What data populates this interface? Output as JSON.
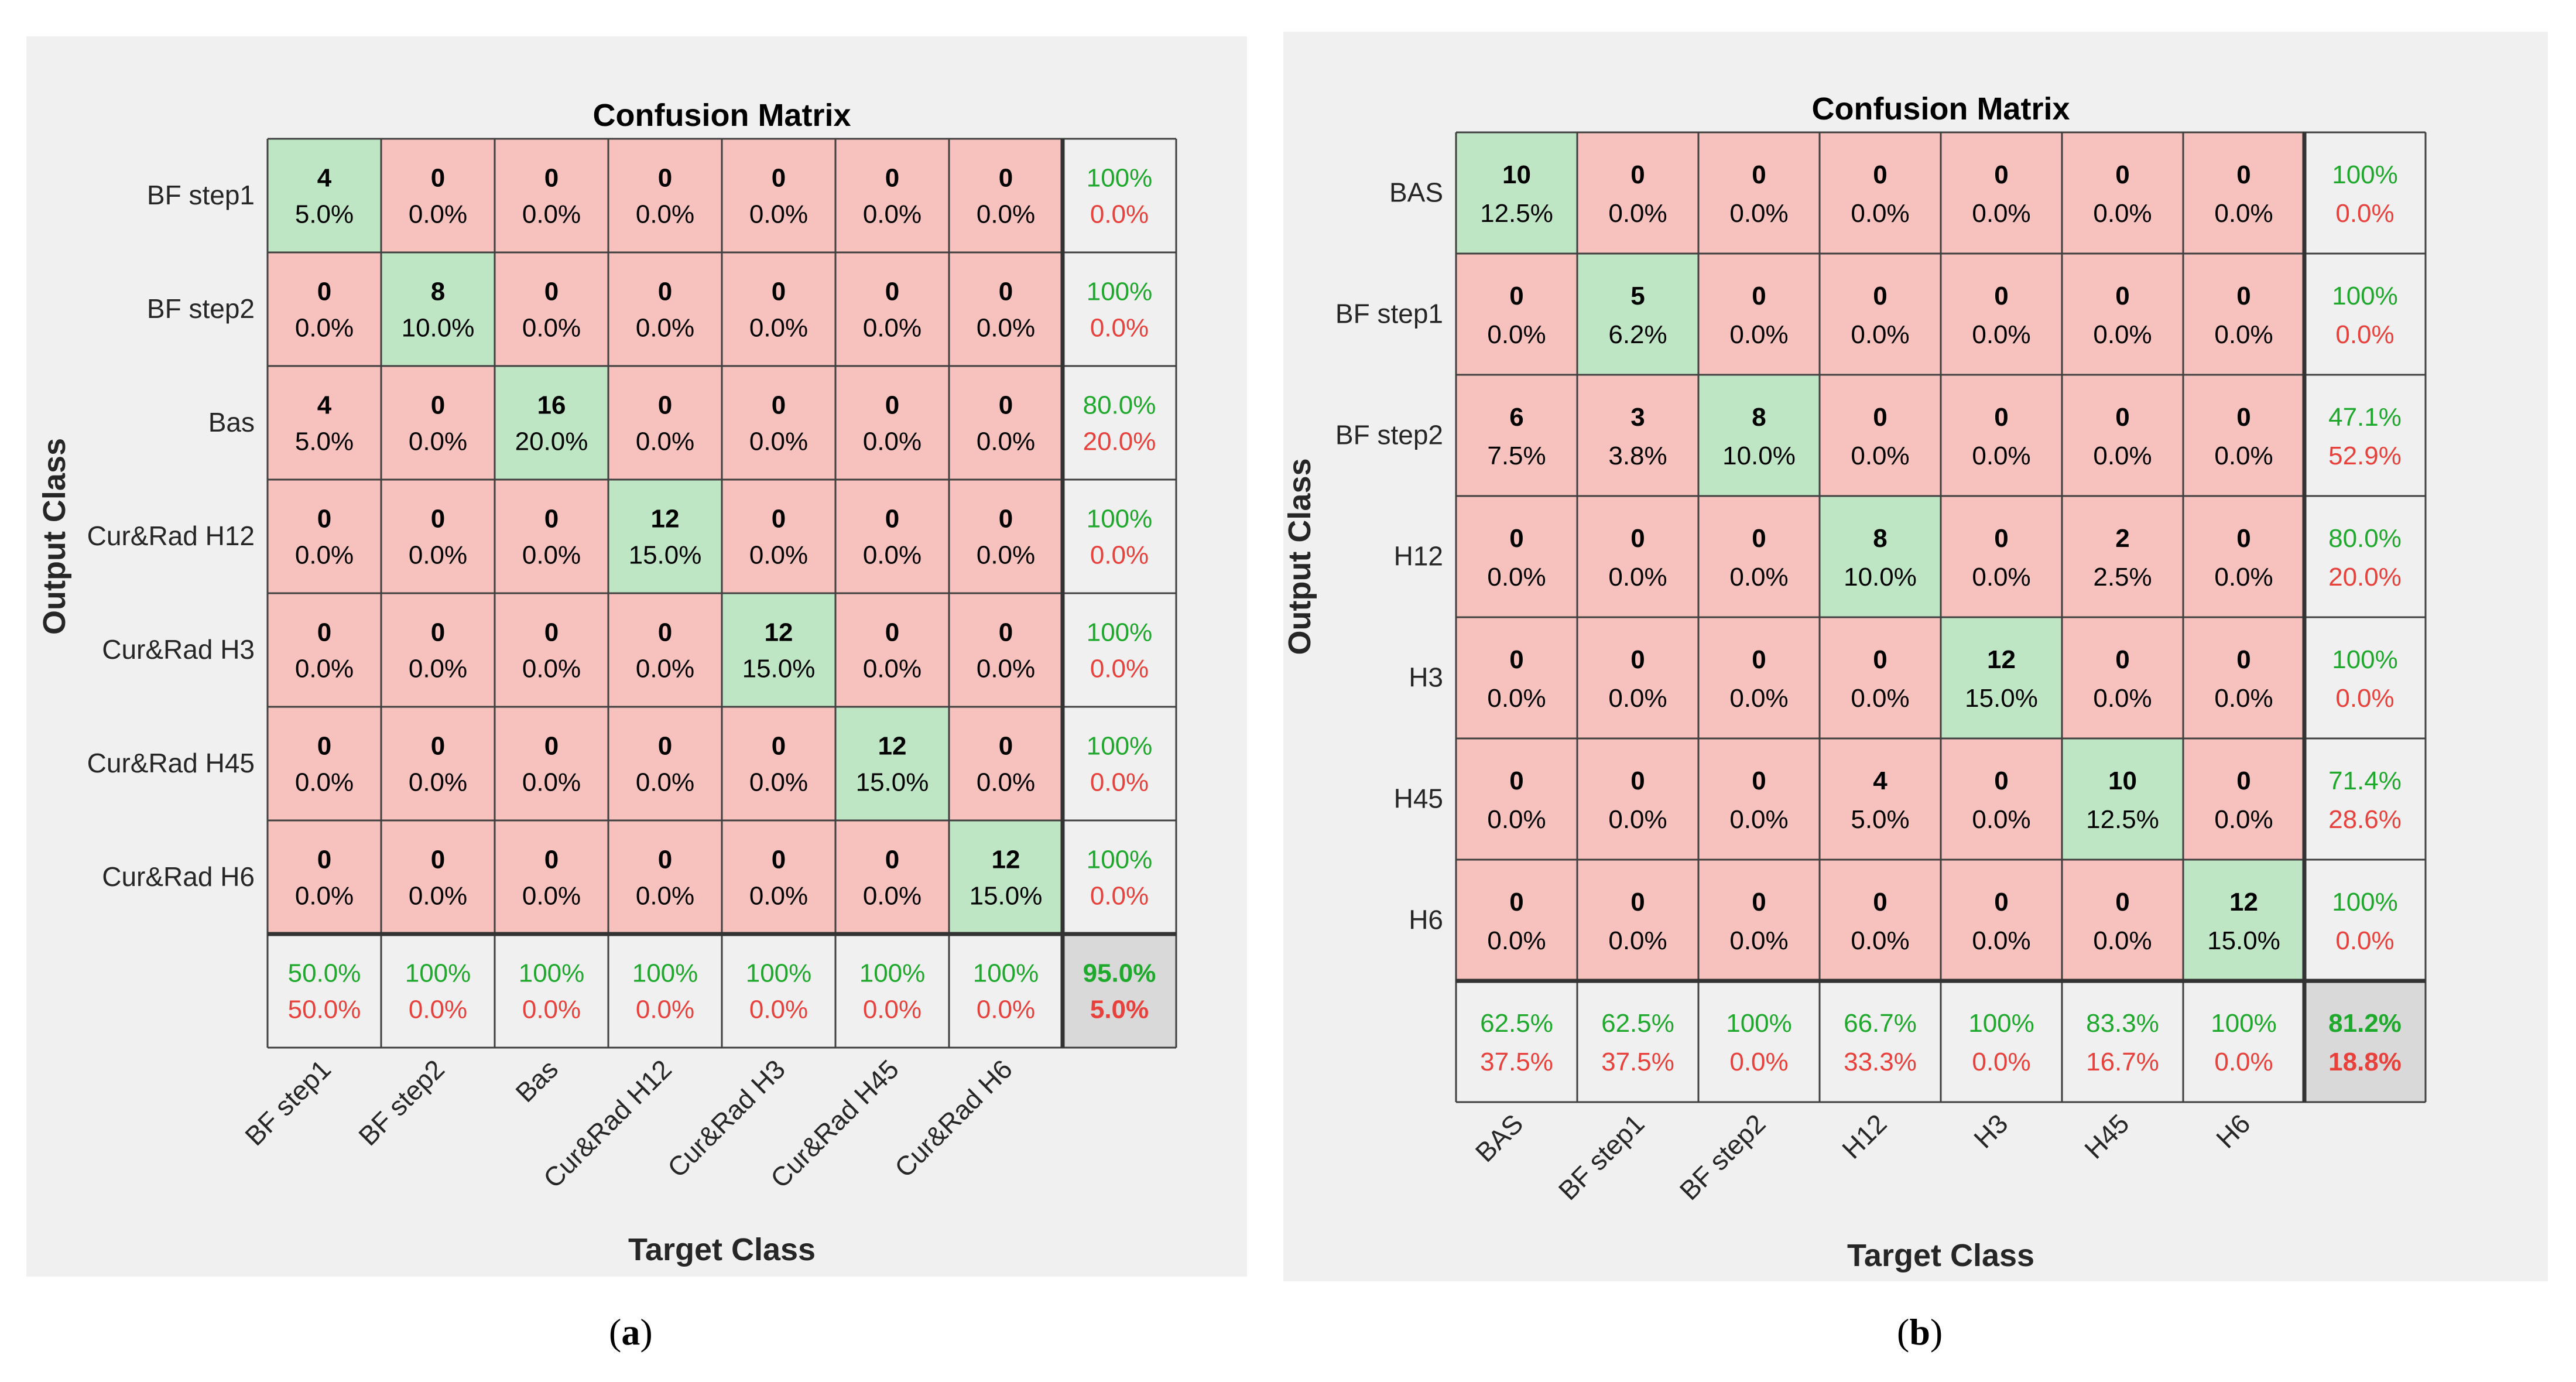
{
  "colors": {
    "diag": "#bfe6c4",
    "offdiag": "#f7c1bd",
    "summary": "#f0f0f0",
    "total": "#d9d9d9",
    "green": "#1ea82c",
    "red": "#e8413c",
    "grid": "#404040",
    "background": "#f0f0f0"
  },
  "chart_data": [
    {
      "type": "heatmap",
      "panel_label": "a",
      "title": "Confusion Matrix",
      "xlabel": "Target Class",
      "ylabel": "Output Class",
      "output_classes": [
        "BF step1",
        "BF step2",
        "Bas",
        "Cur&Rad H12",
        "Cur&Rad H3",
        "Cur&Rad H45",
        "Cur&Rad H6"
      ],
      "target_classes": [
        "BF step1",
        "BF step2",
        "Bas",
        "Cur&Rad H12",
        "Cur&Rad H3",
        "Cur&Rad H45",
        "Cur&Rad H6"
      ],
      "counts": [
        [
          4,
          0,
          0,
          0,
          0,
          0,
          0
        ],
        [
          0,
          8,
          0,
          0,
          0,
          0,
          0
        ],
        [
          4,
          0,
          16,
          0,
          0,
          0,
          0
        ],
        [
          0,
          0,
          0,
          12,
          0,
          0,
          0
        ],
        [
          0,
          0,
          0,
          0,
          12,
          0,
          0
        ],
        [
          0,
          0,
          0,
          0,
          0,
          12,
          0
        ],
        [
          0,
          0,
          0,
          0,
          0,
          0,
          12
        ]
      ],
      "percents": [
        [
          "5.0%",
          "0.0%",
          "0.0%",
          "0.0%",
          "0.0%",
          "0.0%",
          "0.0%"
        ],
        [
          "0.0%",
          "10.0%",
          "0.0%",
          "0.0%",
          "0.0%",
          "0.0%",
          "0.0%"
        ],
        [
          "5.0%",
          "0.0%",
          "20.0%",
          "0.0%",
          "0.0%",
          "0.0%",
          "0.0%"
        ],
        [
          "0.0%",
          "0.0%",
          "0.0%",
          "15.0%",
          "0.0%",
          "0.0%",
          "0.0%"
        ],
        [
          "0.0%",
          "0.0%",
          "0.0%",
          "0.0%",
          "15.0%",
          "0.0%",
          "0.0%"
        ],
        [
          "0.0%",
          "0.0%",
          "0.0%",
          "0.0%",
          "0.0%",
          "15.0%",
          "0.0%"
        ],
        [
          "0.0%",
          "0.0%",
          "0.0%",
          "0.0%",
          "0.0%",
          "0.0%",
          "15.0%"
        ]
      ],
      "row_summary": [
        [
          "100%",
          "0.0%"
        ],
        [
          "100%",
          "0.0%"
        ],
        [
          "80.0%",
          "20.0%"
        ],
        [
          "100%",
          "0.0%"
        ],
        [
          "100%",
          "0.0%"
        ],
        [
          "100%",
          "0.0%"
        ],
        [
          "100%",
          "0.0%"
        ]
      ],
      "col_summary": [
        [
          "50.0%",
          "50.0%"
        ],
        [
          "100%",
          "0.0%"
        ],
        [
          "100%",
          "0.0%"
        ],
        [
          "100%",
          "0.0%"
        ],
        [
          "100%",
          "0.0%"
        ],
        [
          "100%",
          "0.0%"
        ],
        [
          "100%",
          "0.0%"
        ]
      ],
      "overall": [
        "95.0%",
        "5.0%"
      ]
    },
    {
      "type": "heatmap",
      "panel_label": "b",
      "title": "Confusion Matrix",
      "xlabel": "Target Class",
      "ylabel": "Output Class",
      "output_classes": [
        "BAS",
        "BF step1",
        "BF step2",
        "H12",
        "H3",
        "H45",
        "H6"
      ],
      "target_classes": [
        "BAS",
        "BF step1",
        "BF step2",
        "H12",
        "H3",
        "H45",
        "H6"
      ],
      "counts": [
        [
          10,
          0,
          0,
          0,
          0,
          0,
          0
        ],
        [
          0,
          5,
          0,
          0,
          0,
          0,
          0
        ],
        [
          6,
          3,
          8,
          0,
          0,
          0,
          0
        ],
        [
          0,
          0,
          0,
          8,
          0,
          2,
          0
        ],
        [
          0,
          0,
          0,
          0,
          12,
          0,
          0
        ],
        [
          0,
          0,
          0,
          4,
          0,
          10,
          0
        ],
        [
          0,
          0,
          0,
          0,
          0,
          0,
          12
        ]
      ],
      "percents": [
        [
          "12.5%",
          "0.0%",
          "0.0%",
          "0.0%",
          "0.0%",
          "0.0%",
          "0.0%"
        ],
        [
          "0.0%",
          "6.2%",
          "0.0%",
          "0.0%",
          "0.0%",
          "0.0%",
          "0.0%"
        ],
        [
          "7.5%",
          "3.8%",
          "10.0%",
          "0.0%",
          "0.0%",
          "0.0%",
          "0.0%"
        ],
        [
          "0.0%",
          "0.0%",
          "0.0%",
          "10.0%",
          "0.0%",
          "2.5%",
          "0.0%"
        ],
        [
          "0.0%",
          "0.0%",
          "0.0%",
          "0.0%",
          "15.0%",
          "0.0%",
          "0.0%"
        ],
        [
          "0.0%",
          "0.0%",
          "0.0%",
          "5.0%",
          "0.0%",
          "12.5%",
          "0.0%"
        ],
        [
          "0.0%",
          "0.0%",
          "0.0%",
          "0.0%",
          "0.0%",
          "0.0%",
          "15.0%"
        ]
      ],
      "row_summary": [
        [
          "100%",
          "0.0%"
        ],
        [
          "100%",
          "0.0%"
        ],
        [
          "47.1%",
          "52.9%"
        ],
        [
          "80.0%",
          "20.0%"
        ],
        [
          "100%",
          "0.0%"
        ],
        [
          "71.4%",
          "28.6%"
        ],
        [
          "100%",
          "0.0%"
        ]
      ],
      "col_summary": [
        [
          "62.5%",
          "37.5%"
        ],
        [
          "62.5%",
          "37.5%"
        ],
        [
          "100%",
          "0.0%"
        ],
        [
          "66.7%",
          "33.3%"
        ],
        [
          "100%",
          "0.0%"
        ],
        [
          "83.3%",
          "16.7%"
        ],
        [
          "100%",
          "0.0%"
        ]
      ],
      "overall": [
        "81.2%",
        "18.8%"
      ]
    }
  ]
}
